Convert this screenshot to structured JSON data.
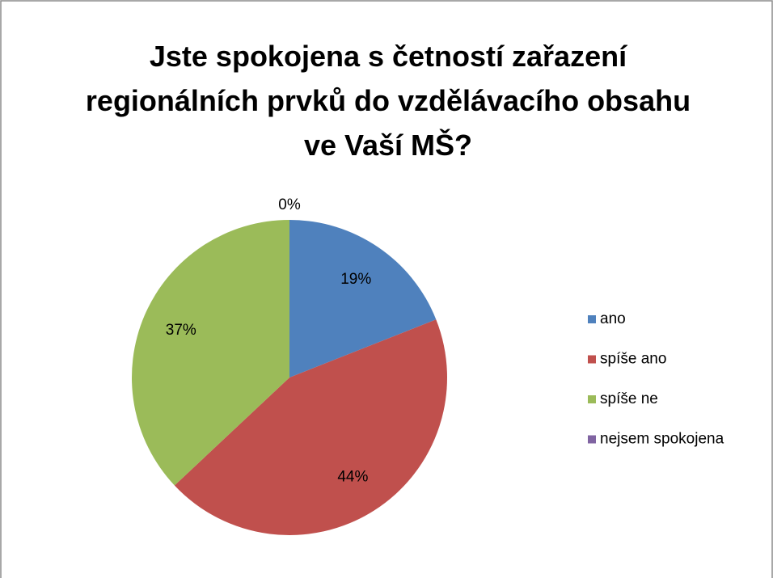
{
  "chart_data": {
    "type": "pie",
    "title": "Jste spokojena s četností zařazení regionálních prvků do vzdělávacího obsahu ve Vaší MŠ?",
    "categories": [
      "ano",
      "spíše ano",
      "spíše ne",
      "nejsem spokojena"
    ],
    "values": [
      19,
      44,
      37,
      0
    ],
    "value_labels": [
      "19%",
      "44%",
      "37%",
      "0%"
    ],
    "colors": [
      "#4f81bd",
      "#c0504d",
      "#9bbb59",
      "#8064a2"
    ],
    "legend": "right"
  }
}
